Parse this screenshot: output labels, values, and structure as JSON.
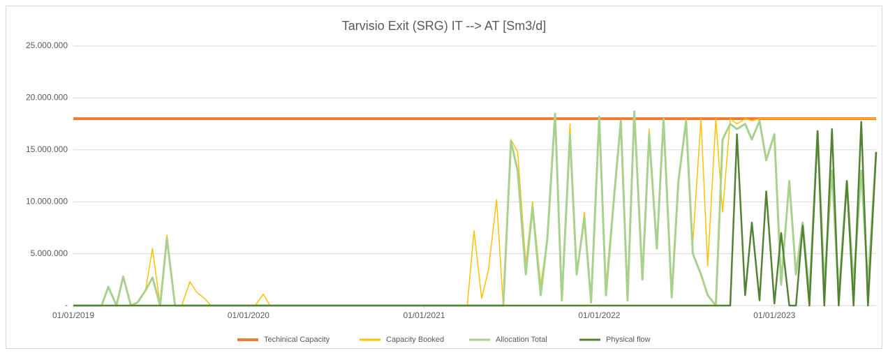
{
  "chart_data": {
    "type": "line",
    "title": "Tarvisio Exit (SRG) IT --> AT [Sm3/d]",
    "x": [
      "2019-01-01",
      "2019-01-15",
      "2019-02-01",
      "2019-02-15",
      "2019-03-01",
      "2019-03-15",
      "2019-04-01",
      "2019-04-15",
      "2019-05-01",
      "2019-05-15",
      "2019-06-01",
      "2019-06-15",
      "2019-07-01",
      "2019-07-15",
      "2019-08-01",
      "2019-08-15",
      "2019-09-01",
      "2019-09-15",
      "2019-10-01",
      "2019-10-15",
      "2019-11-01",
      "2019-11-15",
      "2019-12-01",
      "2019-12-15",
      "2020-01-01",
      "2020-01-15",
      "2020-02-01",
      "2020-02-15",
      "2020-03-01",
      "2020-03-15",
      "2020-04-01",
      "2020-04-15",
      "2020-05-01",
      "2020-05-15",
      "2020-06-01",
      "2020-06-15",
      "2020-07-01",
      "2020-07-15",
      "2020-08-01",
      "2020-08-15",
      "2020-09-01",
      "2020-09-15",
      "2020-10-01",
      "2020-10-15",
      "2020-11-01",
      "2020-11-15",
      "2020-12-01",
      "2020-12-15",
      "2021-01-01",
      "2021-01-15",
      "2021-02-01",
      "2021-02-15",
      "2021-03-01",
      "2021-03-15",
      "2021-04-01",
      "2021-04-15",
      "2021-05-01",
      "2021-05-15",
      "2021-06-01",
      "2021-06-15",
      "2021-07-01",
      "2021-07-15",
      "2021-08-01",
      "2021-08-15",
      "2021-09-01",
      "2021-09-15",
      "2021-10-01",
      "2021-10-15",
      "2021-11-01",
      "2021-11-15",
      "2021-12-01",
      "2021-12-15",
      "2022-01-01",
      "2022-01-15",
      "2022-02-01",
      "2022-02-15",
      "2022-03-01",
      "2022-03-15",
      "2022-04-01",
      "2022-04-15",
      "2022-05-01",
      "2022-05-15",
      "2022-06-01",
      "2022-06-15",
      "2022-07-01",
      "2022-07-15",
      "2022-08-01",
      "2022-08-15",
      "2022-09-01",
      "2022-09-15",
      "2022-10-01",
      "2022-10-15",
      "2022-11-01",
      "2022-11-15",
      "2022-12-01",
      "2022-12-15",
      "2023-01-01",
      "2023-01-15",
      "2023-02-01",
      "2023-02-15",
      "2023-03-01",
      "2023-03-15",
      "2023-04-01",
      "2023-04-15",
      "2023-05-01",
      "2023-05-15",
      "2023-06-01",
      "2023-06-15",
      "2023-07-01",
      "2023-07-15",
      "2023-08-01"
    ],
    "series": [
      {
        "name": "Techinical Capacity",
        "color": "#ed7d31",
        "values": [
          18000000,
          18000000,
          18000000,
          18000000,
          18000000,
          18000000,
          18000000,
          18000000,
          18000000,
          18000000,
          18000000,
          18000000,
          18000000,
          18000000,
          18000000,
          18000000,
          18000000,
          18000000,
          18000000,
          18000000,
          18000000,
          18000000,
          18000000,
          18000000,
          18000000,
          18000000,
          18000000,
          18000000,
          18000000,
          18000000,
          18000000,
          18000000,
          18000000,
          18000000,
          18000000,
          18000000,
          18000000,
          18000000,
          18000000,
          18000000,
          18000000,
          18000000,
          18000000,
          18000000,
          18000000,
          18000000,
          18000000,
          18000000,
          18000000,
          18000000,
          18000000,
          18000000,
          18000000,
          18000000,
          18000000,
          18000000,
          18000000,
          18000000,
          18000000,
          18000000,
          18000000,
          18000000,
          18000000,
          18000000,
          18000000,
          18000000,
          18000000,
          18000000,
          18000000,
          18000000,
          18000000,
          18000000,
          18000000,
          18000000,
          18000000,
          18000000,
          18000000,
          18000000,
          18000000,
          18000000,
          18000000,
          18000000,
          18000000,
          18000000,
          18000000,
          18000000,
          18000000,
          18000000,
          18000000,
          18000000,
          18000000,
          18000000,
          18000000,
          18000000,
          18000000,
          18000000,
          18000000,
          18000000,
          18000000,
          18000000,
          18000000,
          18000000,
          18000000,
          18000000,
          18000000,
          18000000,
          18000000,
          18000000,
          18000000,
          18000000,
          18000000
        ]
      },
      {
        "name": "Capacity  Booked",
        "color": "#ffc000",
        "values": [
          0,
          0,
          0,
          0,
          0,
          1800000,
          0,
          2800000,
          0,
          300000,
          1600000,
          5500000,
          0,
          6800000,
          0,
          0,
          2300000,
          1300000,
          700000,
          0,
          0,
          0,
          0,
          0,
          0,
          0,
          1100000,
          0,
          0,
          0,
          0,
          0,
          0,
          0,
          0,
          0,
          0,
          0,
          0,
          0,
          0,
          0,
          0,
          0,
          0,
          0,
          0,
          0,
          0,
          0,
          0,
          0,
          0,
          0,
          0,
          7200000,
          700000,
          3400000,
          10200000,
          0,
          16000000,
          14800000,
          4000000,
          10000000,
          2000000,
          6500000,
          18500000,
          1000000,
          17500000,
          3000000,
          9000000,
          500000,
          18000000,
          2000000,
          11000000,
          17800000,
          1000000,
          18000000,
          3000000,
          17000000,
          6000000,
          18000000,
          1000000,
          12000000,
          18000000,
          6000000,
          18000000,
          3800000,
          18000000,
          9000000,
          18000000,
          17500000,
          18000000,
          17800000,
          18000000,
          18000000,
          18000000,
          18000000,
          18000000,
          18000000,
          18000000,
          18000000,
          18000000,
          18000000,
          18000000,
          18000000,
          18000000,
          18000000,
          18000000,
          18000000,
          18000000
        ]
      },
      {
        "name": "Allocation Total",
        "color": "#a9d18e",
        "values": [
          0,
          0,
          0,
          0,
          0,
          1800000,
          0,
          2800000,
          0,
          300000,
          1500000,
          2700000,
          0,
          6500000,
          0,
          0,
          0,
          0,
          0,
          0,
          0,
          0,
          0,
          0,
          0,
          0,
          0,
          0,
          0,
          0,
          0,
          0,
          0,
          0,
          0,
          0,
          0,
          0,
          0,
          0,
          0,
          0,
          0,
          0,
          0,
          0,
          0,
          0,
          0,
          0,
          0,
          0,
          0,
          0,
          0,
          0,
          0,
          0,
          0,
          0,
          15800000,
          13000000,
          3000000,
          9500000,
          1000000,
          6500000,
          18500000,
          500000,
          16500000,
          3000000,
          8500000,
          300000,
          18200000,
          1000000,
          10500000,
          17800000,
          500000,
          18700000,
          2500000,
          16500000,
          5500000,
          18000000,
          800000,
          12000000,
          17800000,
          5000000,
          3000000,
          1000000,
          0,
          16000000,
          17500000,
          17000000,
          17500000,
          16000000,
          17800000,
          14000000,
          16500000,
          2000000,
          12000000,
          3000000,
          8000000,
          1000000,
          16800000,
          2000000,
          13000000,
          1000000,
          12000000,
          2000000,
          13000000,
          2000000,
          14800000
        ]
      },
      {
        "name": "Physical flow",
        "color": "#548235",
        "values": [
          0,
          0,
          0,
          0,
          0,
          0,
          0,
          0,
          0,
          0,
          0,
          0,
          0,
          0,
          0,
          0,
          0,
          0,
          0,
          0,
          0,
          0,
          0,
          0,
          0,
          0,
          0,
          0,
          0,
          0,
          0,
          0,
          0,
          0,
          0,
          0,
          0,
          0,
          0,
          0,
          0,
          0,
          0,
          0,
          0,
          0,
          0,
          0,
          0,
          0,
          0,
          0,
          0,
          0,
          0,
          0,
          0,
          0,
          0,
          0,
          0,
          0,
          0,
          0,
          0,
          0,
          0,
          0,
          0,
          0,
          0,
          0,
          0,
          0,
          0,
          0,
          0,
          0,
          0,
          0,
          0,
          0,
          0,
          0,
          0,
          0,
          0,
          0,
          0,
          0,
          0,
          16500000,
          1000000,
          8000000,
          500000,
          11000000,
          200000,
          7000000,
          0,
          0,
          7700000,
          0,
          16800000,
          0,
          17000000,
          0,
          12000000,
          0,
          17700000,
          0,
          14800000
        ]
      }
    ],
    "xlim": [
      "2019-01-01",
      "2023-08-01"
    ],
    "xticks": [
      {
        "value": "2019-01-01",
        "label": "01/01/2019"
      },
      {
        "value": "2020-01-01",
        "label": "01/01/2020"
      },
      {
        "value": "2021-01-01",
        "label": "01/01/2021"
      },
      {
        "value": "2022-01-01",
        "label": "01/01/2022"
      },
      {
        "value": "2023-01-01",
        "label": "01/01/2023"
      }
    ],
    "ylim": [
      0,
      25000000
    ],
    "yticks": [
      {
        "value": 0,
        "label": "-"
      },
      {
        "value": 5000000,
        "label": "5.000.000"
      },
      {
        "value": 10000000,
        "label": "10.000.000"
      },
      {
        "value": 15000000,
        "label": "15.000.000"
      },
      {
        "value": 20000000,
        "label": "20.000.000"
      },
      {
        "value": 25000000,
        "label": "25.000.000"
      }
    ],
    "grid": true,
    "legend": "bottom"
  }
}
